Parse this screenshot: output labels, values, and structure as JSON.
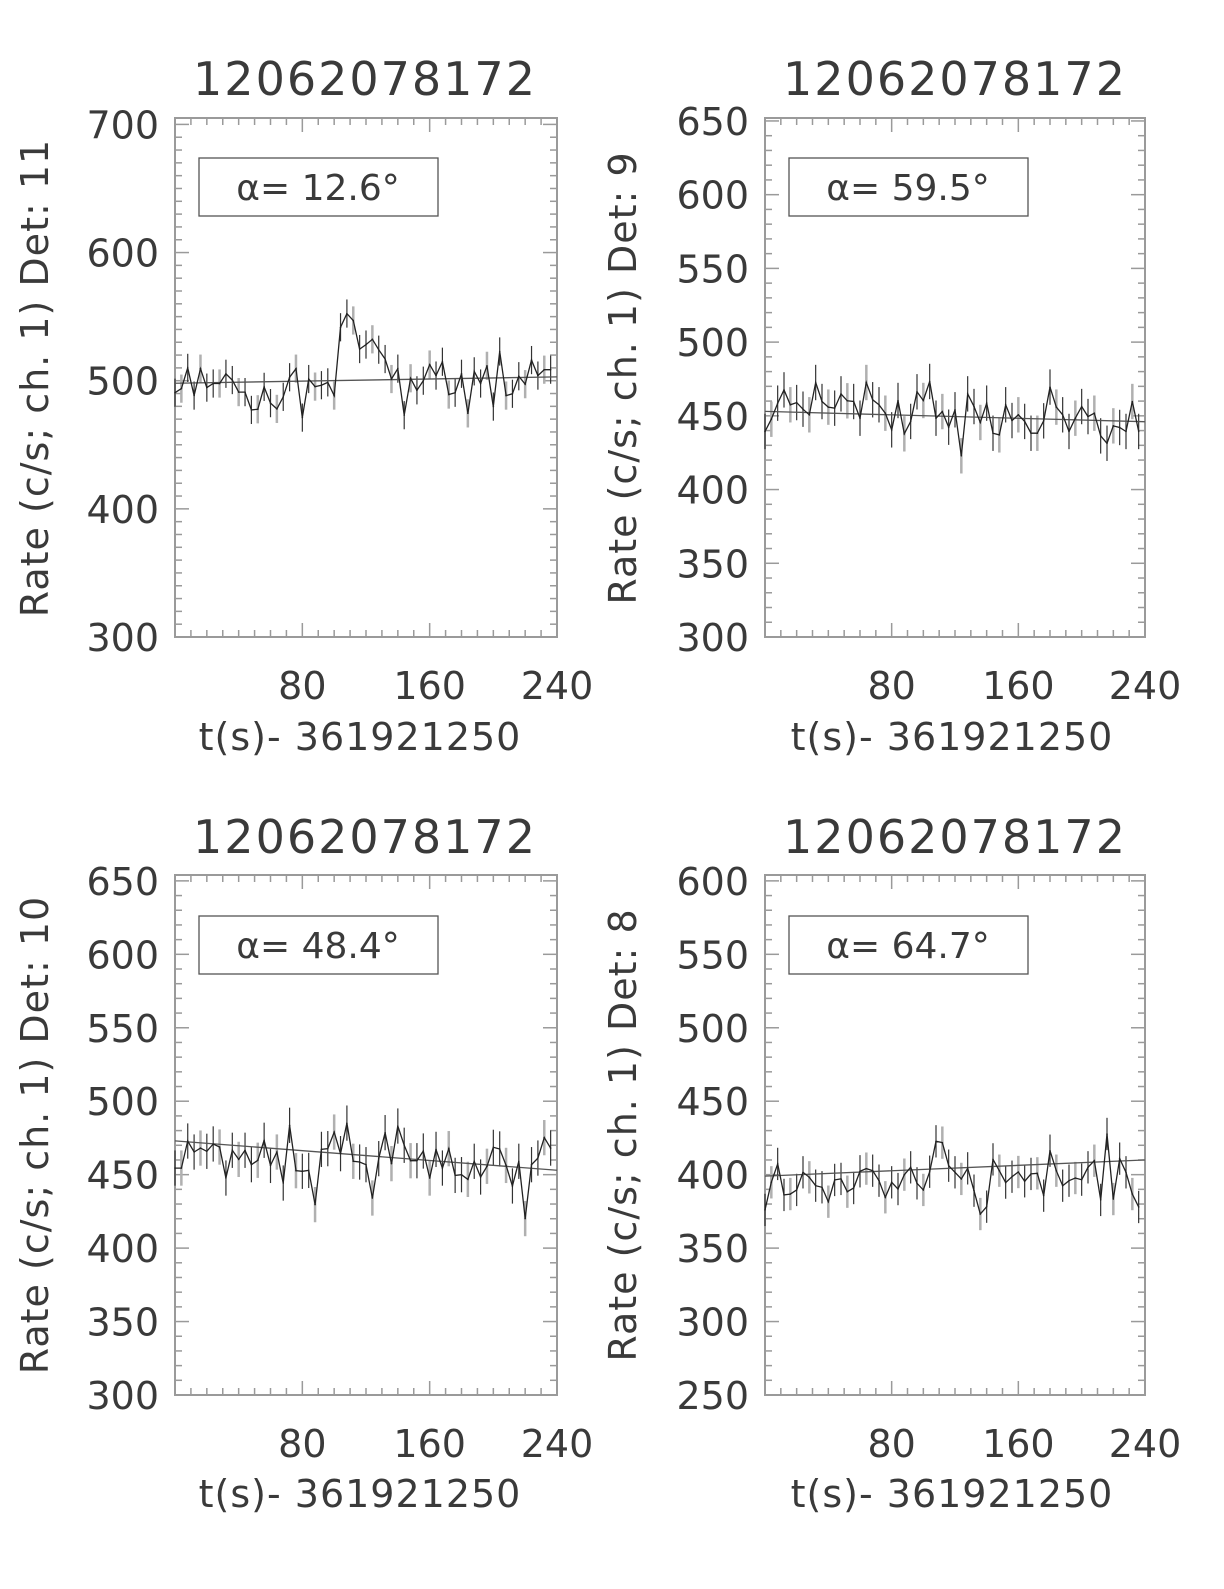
{
  "chart_data": [
    {
      "type": "line",
      "title": "12062078172",
      "ylabel": "Rate (c/s; ch. 1) Det: 11",
      "xlabel": "t(s)- 361921250",
      "annotation": "α=  12.6°",
      "xlim": [
        0,
        240
      ],
      "ylim": [
        300,
        705
      ],
      "xticks": [
        80,
        160,
        240
      ],
      "yticks": [
        300,
        400,
        500,
        600,
        700
      ],
      "x": [
        0,
        4,
        8,
        12,
        16,
        20,
        24,
        28,
        32,
        36,
        40,
        44,
        48,
        52,
        56,
        60,
        64,
        68,
        72,
        76,
        80,
        84,
        88,
        92,
        96,
        100,
        104,
        108,
        112,
        116,
        120,
        124,
        128,
        132,
        136,
        140,
        144,
        148,
        152,
        156,
        160,
        164,
        168,
        172,
        176,
        180,
        184,
        188,
        192,
        196,
        200,
        204,
        208,
        212,
        216,
        220,
        224,
        228,
        232,
        236
      ],
      "y": [
        490.6,
        493.8,
        510,
        488.4,
        509.4,
        494.6,
        497.8,
        497.8,
        505.4,
        500.5,
        491.1,
        491.1,
        477.2,
        477.7,
        495.2,
        482.5,
        478,
        487.4,
        502.7,
        509.4,
        471.2,
        501.3,
        495.4,
        496.5,
        498.7,
        488.4,
        541.7,
        552.4,
        547,
        524.7,
        528.2,
        532.3,
        524.2,
        516.9,
        501.3,
        509.4,
        473.1,
        501.9,
        492.5,
        500,
        512.6,
        504,
        514.8,
        489.2,
        490.6,
        505.4,
        474.5,
        507.3,
        497.8,
        511.6,
        479.8,
        522.8,
        488.4,
        489.8,
        503.5,
        497.3,
        516.1,
        504,
        508.6,
        508.6
      ],
      "yerr": 11,
      "fit": [
        498,
        503
      ]
    },
    {
      "type": "line",
      "title": "12062078172",
      "ylabel": "Rate (c/s; ch. 1) Det: 9",
      "xlabel": "t(s)- 361921250",
      "annotation": "α=  59.5°",
      "xlim": [
        0,
        240
      ],
      "ylim": [
        300,
        652
      ],
      "xticks": [
        80,
        160,
        240
      ],
      "yticks": [
        300,
        350,
        400,
        450,
        500,
        550,
        600,
        650
      ],
      "x": [
        0,
        4,
        8,
        12,
        16,
        20,
        24,
        28,
        32,
        36,
        40,
        44,
        48,
        52,
        56,
        60,
        64,
        68,
        72,
        76,
        80,
        84,
        88,
        92,
        96,
        100,
        104,
        108,
        112,
        116,
        120,
        124,
        128,
        132,
        136,
        140,
        144,
        148,
        152,
        156,
        160,
        164,
        168,
        172,
        176,
        180,
        184,
        188,
        192,
        196,
        200,
        204,
        208,
        212,
        216,
        220,
        224,
        228,
        232,
        236
      ],
      "y": [
        439.4,
        447.7,
        458.6,
        467.6,
        457.5,
        459,
        454.5,
        450.7,
        472.6,
        459.7,
        455.9,
        455.2,
        464.9,
        460.2,
        459.7,
        448.4,
        472.6,
        460.9,
        457.5,
        451.8,
        440.5,
        460.4,
        437.8,
        446.2,
        466.3,
        460.4,
        473.3,
        448.4,
        452.9,
        442.3,
        454.1,
        422.9,
        464.9,
        456.3,
        445.5,
        458.6,
        438.2,
        437.1,
        457.5,
        446.8,
        450.7,
        446.2,
        438.2,
        438.2,
        446.6,
        469.5,
        455.9,
        450.7,
        439.4,
        448.4,
        456.3,
        449.5,
        451.8,
        436.4,
        431.4,
        443.2,
        442.1,
        439.4,
        459.7,
        439.4
      ],
      "yerr": 12,
      "fit": [
        453,
        446
      ]
    },
    {
      "type": "line",
      "title": "12062078172",
      "ylabel": "Rate (c/s; ch. 1) Det: 10",
      "xlabel": "t(s)- 361921250",
      "annotation": "α=  48.4°",
      "xlim": [
        0,
        240
      ],
      "ylim": [
        300,
        654
      ],
      "xticks": [
        80,
        160,
        240
      ],
      "yticks": [
        300,
        350,
        400,
        450,
        500,
        550,
        600,
        650
      ],
      "x": [
        0,
        4,
        8,
        12,
        16,
        20,
        24,
        28,
        32,
        36,
        40,
        44,
        48,
        52,
        56,
        60,
        64,
        68,
        72,
        76,
        80,
        84,
        88,
        92,
        96,
        100,
        104,
        108,
        112,
        116,
        120,
        124,
        128,
        132,
        136,
        140,
        144,
        148,
        152,
        156,
        160,
        164,
        168,
        172,
        176,
        180,
        184,
        188,
        192,
        196,
        200,
        204,
        208,
        212,
        216,
        220,
        224,
        228,
        232,
        236
      ],
      "y": [
        454.5,
        454.5,
        472.9,
        465.4,
        468.1,
        465.9,
        470.9,
        468.8,
        447.7,
        466.6,
        460.4,
        466.6,
        456.8,
        459.8,
        473.4,
        456.3,
        465.4,
        444.3,
        483.6,
        452.7,
        452.3,
        452.9,
        429.6,
        467.2,
        467.7,
        479,
        464.3,
        485.1,
        459.1,
        458.6,
        456.8,
        434.1,
        460.9,
        478.6,
        457.5,
        483.1,
        470,
        459.5,
        459.5,
        466.1,
        447.7,
        467.2,
        454.5,
        467.7,
        449.5,
        450,
        446.8,
        459.1,
        448.4,
        455.7,
        468.6,
        467.5,
        456.3,
        442.3,
        459.1,
        420.1,
        456.8,
        461.3,
        475.2,
        468.1
      ],
      "yerr": 12,
      "fit": [
        473,
        453
      ]
    },
    {
      "type": "line",
      "title": "12062078172",
      "ylabel": "Rate (c/s; ch. 1) Det: 8",
      "xlabel": "t(s)- 361921250",
      "annotation": "α=  64.7°",
      "xlim": [
        0,
        240
      ],
      "ylim": [
        250,
        604
      ],
      "xticks": [
        80,
        160,
        240
      ],
      "yticks": [
        250,
        300,
        350,
        400,
        450,
        500,
        550,
        600
      ],
      "x": [
        0,
        4,
        8,
        12,
        16,
        20,
        24,
        28,
        32,
        36,
        40,
        44,
        48,
        52,
        56,
        60,
        64,
        68,
        72,
        76,
        80,
        84,
        88,
        92,
        96,
        100,
        104,
        108,
        112,
        116,
        120,
        124,
        128,
        132,
        136,
        140,
        144,
        148,
        152,
        156,
        160,
        164,
        168,
        172,
        176,
        180,
        184,
        188,
        192,
        196,
        200,
        204,
        208,
        212,
        216,
        220,
        224,
        228,
        232,
        236
      ],
      "y": [
        376,
        394.8,
        407.3,
        386.2,
        386.8,
        389.6,
        401.6,
        398.2,
        392.5,
        391.4,
        381.6,
        396.4,
        397.1,
        388.4,
        390.9,
        402.3,
        404.1,
        402.7,
        395.9,
        384.6,
        394.8,
        390.2,
        400,
        405,
        394.1,
        389.6,
        402,
        422.7,
        421.8,
        406.1,
        401.6,
        397.1,
        404.3,
        389.1,
        373.2,
        378.2,
        410.4,
        402.7,
        394.6,
        398.6,
        401.8,
        395.5,
        400.5,
        400.9,
        385.7,
        416.3,
        402.7,
        392.5,
        395.9,
        397.7,
        396.6,
        405,
        409.5,
        382.8,
        427.7,
        383.4,
        410.9,
        401.6,
        386.8,
        378
      ],
      "yerr": 11,
      "fit": [
        399,
        410
      ]
    }
  ],
  "colors": {
    "axis": "#9a9a9a",
    "line": "#222222",
    "errbar_dark": "#333333",
    "errbar_light": "#b0b0b0",
    "text": "#3a3a3a"
  }
}
